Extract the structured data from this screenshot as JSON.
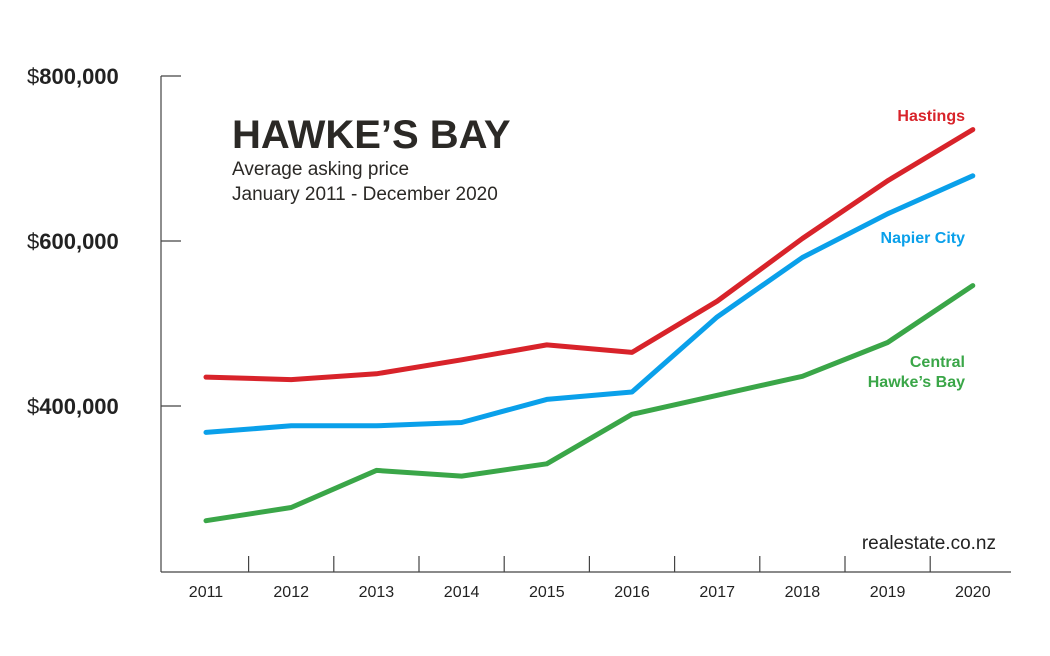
{
  "chart_data": {
    "type": "line",
    "title": "HAWKE’S BAY",
    "subtitle_lines": [
      "Average asking price",
      "January 2011 - December 2020"
    ],
    "source": "realestate.co.nz",
    "x": [
      "2011",
      "2012",
      "2013",
      "2014",
      "2015",
      "2016",
      "2017",
      "2018",
      "2019",
      "2020"
    ],
    "y_ticks": [
      {
        "value": 800000,
        "currency": "$",
        "number": "800,000"
      },
      {
        "value": 600000,
        "currency": "$",
        "number": "600,000"
      },
      {
        "value": 400000,
        "currency": "$",
        "number": "400,000"
      }
    ],
    "ylim": [
      200000,
      800000
    ],
    "grid": false,
    "series": [
      {
        "name": "Hastings",
        "label_lines": [
          "Hastings"
        ],
        "color": "#d8232a",
        "values": [
          435000,
          432000,
          439000,
          456000,
          474000,
          465000,
          527000,
          603000,
          673000,
          735000
        ]
      },
      {
        "name": "Napier City",
        "label_lines": [
          "Napier City"
        ],
        "color": "#0aa0ea",
        "values": [
          368000,
          376000,
          376000,
          380000,
          408000,
          417000,
          508000,
          580000,
          633000,
          679000
        ]
      },
      {
        "name": "Central Hawke’s Bay",
        "label_lines": [
          "Central",
          "Hawke’s Bay"
        ],
        "color": "#3aa648",
        "values": [
          261000,
          277000,
          322000,
          315000,
          330000,
          390000,
          413000,
          436000,
          477000,
          546000
        ]
      }
    ]
  }
}
